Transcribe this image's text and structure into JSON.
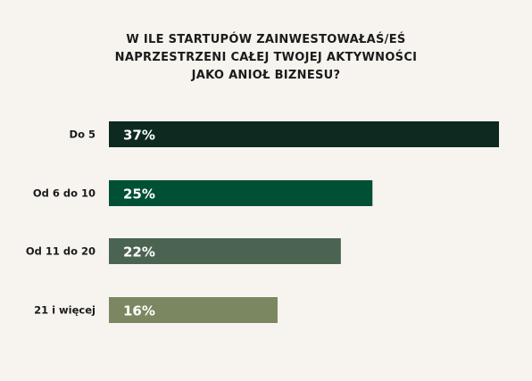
{
  "chart_data": {
    "type": "bar",
    "orientation": "horizontal",
    "title_lines": [
      "W ILE STARTUPÓW ZAINWESTOWAŁAŚ/EŚ",
      "NAPRZESTRZENI CAŁEJ TWOJEJ AKTYWNOŚCI",
      "JAKO ANIOŁ BIZNESU?"
    ],
    "categories": [
      "Do 5",
      "Od 6 do 10",
      "Od 11 do 20",
      "21 i więcej"
    ],
    "values": [
      37,
      25,
      22,
      16
    ],
    "value_labels": [
      "37%",
      "25%",
      "22%",
      "16%"
    ],
    "unit": "%",
    "bar_colors": [
      "#0e2a20",
      "#005036",
      "#4b6452",
      "#7b8760"
    ],
    "xlim": [
      0,
      37
    ],
    "grid": false,
    "legend": "none"
  }
}
